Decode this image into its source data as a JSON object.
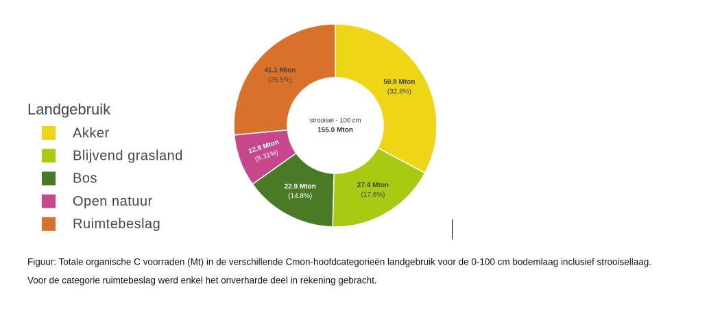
{
  "chart_data": {
    "type": "pie",
    "legend_title": "Landgebruik",
    "categories": [
      "Akker",
      "Blijvend grasland",
      "Bos",
      "Open natuur",
      "Ruimtebeslag"
    ],
    "values": [
      50.8,
      27.4,
      22.9,
      12.9,
      41.1
    ],
    "value_labels": [
      "50.8 Mton",
      "27.4 Mton",
      "22.9 Mton",
      "12.9 Mton",
      "41.1 Mton"
    ],
    "percent_labels": [
      "(32.8%)",
      "(17.6%)",
      "(14.8%)",
      "(8.31%)",
      "(26.5%)"
    ],
    "colors": [
      "#ecd616",
      "#a6cb12",
      "#4b7a27",
      "#c6478b",
      "#d8722a"
    ],
    "center_label": "strooisel - 100 cm",
    "total_label": "155.0 Mton"
  },
  "caption": [
    "Figuur: Totale organische C voorraden (Mt) in de verschillende Cmon-hoofdcategorieën landgebruik voor de 0-100 cm bodemlaag inclusief strooisellaag.",
    "Voor de categorie ruimtebeslag werd enkel het onverharde deel in rekening gebracht."
  ]
}
